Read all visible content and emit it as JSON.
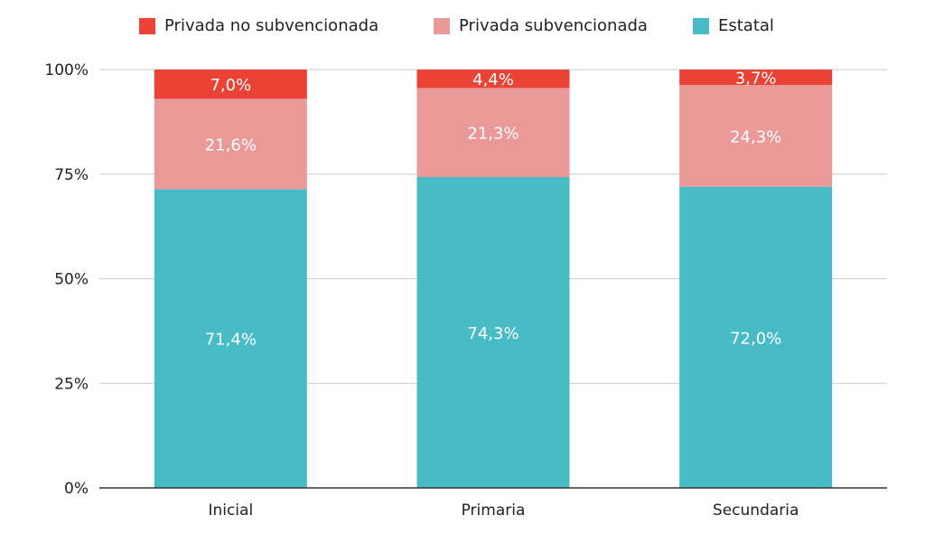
{
  "chart_data": {
    "type": "bar",
    "stacked": true,
    "categories": [
      "Inicial",
      "Primaria",
      "Secundaria"
    ],
    "series": [
      {
        "name": "Estatal",
        "values": [
          71.4,
          74.3,
          72.0
        ],
        "labels": [
          "71,4%",
          "74,3%",
          "72,0%"
        ],
        "color": "#47BCC7"
      },
      {
        "name": "Privada subvencionada",
        "values": [
          21.6,
          21.3,
          24.3
        ],
        "labels": [
          "21,6%",
          "21,3%",
          "24,3%"
        ],
        "color": "#EA9999"
      },
      {
        "name": "Privada no subvencionada",
        "values": [
          7.0,
          4.4,
          3.7
        ],
        "labels": [
          "7,0%",
          "4,4%",
          "3,7%"
        ],
        "color": "#EA4335"
      }
    ],
    "legend_order": [
      "Privada no subvencionada",
      "Privada subvencionada",
      "Estatal"
    ],
    "y_ticks": [
      "0%",
      "25%",
      "50%",
      "75%",
      "100%"
    ],
    "ylim": [
      0,
      100
    ],
    "grid": true,
    "legend_position": "top-center",
    "title": "",
    "xlabel": "",
    "ylabel": ""
  }
}
